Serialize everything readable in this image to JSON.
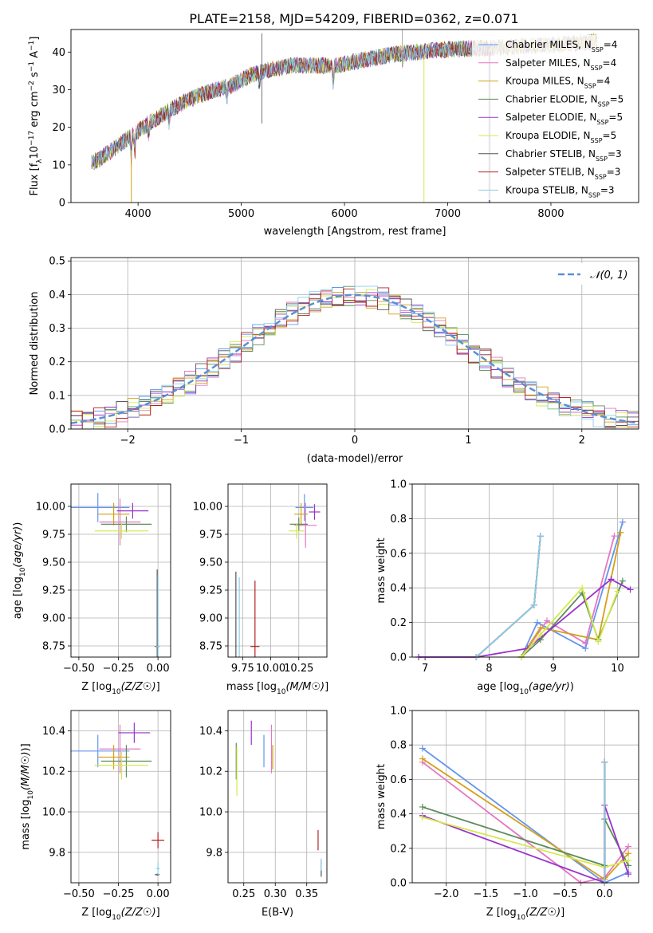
{
  "title": "PLATE=2158, MJD=54209, FIBERID=0362, z=0.071",
  "models": [
    {
      "name": "Chabrier MILES, N",
      "sub": "SSP",
      "tail": "=4",
      "color": "#6495ed"
    },
    {
      "name": "Salpeter MILES, N",
      "sub": "SSP",
      "tail": "=4",
      "color": "#e377c2"
    },
    {
      "name": "Kroupa MILES, N",
      "sub": "SSP",
      "tail": "=4",
      "color": "#d4a017"
    },
    {
      "name": "Chabrier ELODIE, N",
      "sub": "SSP",
      "tail": "=5",
      "color": "#5b8c5a"
    },
    {
      "name": "Salpeter ELODIE, N",
      "sub": "SSP",
      "tail": "=5",
      "color": "#9932cc"
    },
    {
      "name": "Kroupa ELODIE, N",
      "sub": "SSP",
      "tail": "=5",
      "color": "#d4e94a"
    },
    {
      "name": "Chabrier STELIB, N",
      "sub": "SSP",
      "tail": "=3",
      "color": "#555555"
    },
    {
      "name": "Salpeter STELIB, N",
      "sub": "SSP",
      "tail": "=3",
      "color": "#b22222"
    },
    {
      "name": "Kroupa STELIB, N",
      "sub": "SSP",
      "tail": "=3",
      "color": "#87ceeb"
    }
  ],
  "chart_data": [
    {
      "type": "line",
      "id": "spectrum",
      "xlabel": "wavelength [Angstrom, rest frame]",
      "ylabel": "Flux [f",
      "ylabel_full": "Flux [f_λ 10^-17 erg cm^-2 s^-1 A^-1]",
      "xlim": [
        3350,
        8850
      ],
      "ylim": [
        0,
        46
      ],
      "xticks": [
        4000,
        5000,
        6000,
        7000,
        8000
      ],
      "yticks": [
        0,
        10,
        20,
        30,
        40
      ],
      "x": [
        3550,
        3650,
        3800,
        3950,
        4100,
        4300,
        4500,
        4700,
        4900,
        5100,
        5300,
        5500,
        5700,
        5900,
        6100,
        6300,
        6500,
        6700,
        6900,
        7100,
        7300,
        7500,
        7700,
        7900,
        8100,
        8300,
        8500
      ],
      "y": [
        10.5,
        12,
        15,
        18,
        21,
        24.5,
        27.5,
        29.5,
        31,
        34,
        35.5,
        36.5,
        36.5,
        36.2,
        37.5,
        38.5,
        39.5,
        40,
        40.5,
        40.8,
        41,
        41.2,
        41.5,
        41.8,
        42,
        42.5,
        43
      ]
    },
    {
      "type": "bar",
      "id": "residuals",
      "xlabel": "(data-model)/error",
      "ylabel": "Normed distribution",
      "xlim": [
        -2.5,
        2.5
      ],
      "ylim": [
        0,
        0.51
      ],
      "xticks": [
        -2,
        -1,
        0,
        1,
        2
      ],
      "yticks": [
        0.0,
        0.1,
        0.2,
        0.3,
        0.4,
        0.5
      ],
      "ytick_labels": [
        "0.0",
        "0.1",
        "0.2",
        "0.3",
        "0.4",
        "0.5"
      ],
      "bin_width": 0.1,
      "legend": "𝒩(0, 1)",
      "reference_curve": "gaussian(0,1)"
    },
    {
      "type": "scatter",
      "id": "age-vs-z",
      "xlabel": "Z [log",
      "ylabel": "age  [log",
      "xlim": [
        -0.55,
        0.08
      ],
      "ylim": [
        8.65,
        10.2
      ],
      "xticks": [
        -0.5,
        -0.25,
        0.0
      ],
      "xtick_labels": [
        "−0.50",
        "−0.25",
        "0.00"
      ],
      "yticks": [
        8.75,
        9.0,
        9.25,
        9.5,
        9.75,
        10.0
      ],
      "ytick_labels": [
        "8.75",
        "9.00",
        "9.25",
        "9.50",
        "9.75",
        "10.00"
      ],
      "points": [
        {
          "m": 0,
          "x": -0.38,
          "y": 9.99,
          "xe": 0.2,
          "ye": 0.13
        },
        {
          "m": 1,
          "x": -0.24,
          "y": 9.86,
          "xe": 0.13,
          "ye": 0.21
        },
        {
          "m": 2,
          "x": -0.28,
          "y": 9.93,
          "xe": 0.1,
          "ye": 0.1
        },
        {
          "m": 3,
          "x": -0.2,
          "y": 9.84,
          "xe": 0.16,
          "ye": 0.07
        },
        {
          "m": 4,
          "x": -0.16,
          "y": 9.96,
          "xe": 0.1,
          "ye": 0.07
        },
        {
          "m": 5,
          "x": -0.23,
          "y": 9.78,
          "xe": 0.17,
          "ye": 0.07
        },
        {
          "m": 6,
          "x": -0.005,
          "y": 8.745,
          "xe": 0.015,
          "ye": 0.69
        },
        {
          "m": 7,
          "x": 0.0,
          "y": 8.745,
          "xe": 0.01,
          "ye": 0.01
        },
        {
          "m": 8,
          "x": 0.0,
          "y": 8.745,
          "xe": 0.012,
          "ye": 0.64
        }
      ]
    },
    {
      "type": "scatter",
      "id": "age-vs-mass",
      "xlabel": "mass [log",
      "ylabel": "",
      "xlim": [
        9.62,
        10.5
      ],
      "ylim": [
        8.65,
        10.2
      ],
      "xticks": [
        9.75,
        10.0,
        10.25
      ],
      "xtick_labels": [
        "9.75",
        "10.00",
        "10.25"
      ],
      "yticks": [
        8.75,
        9.0,
        9.25,
        9.5,
        9.75,
        10.0
      ],
      "ytick_labels": [
        "8.75",
        "9.00",
        "9.25",
        "9.50",
        "9.75",
        "10.00"
      ],
      "points": [
        {
          "m": 0,
          "x": 10.3,
          "y": 9.99,
          "xe": 0.08,
          "ye": 0.12
        },
        {
          "m": 1,
          "x": 10.31,
          "y": 9.83,
          "xe": 0.1,
          "ye": 0.2
        },
        {
          "m": 2,
          "x": 10.27,
          "y": 9.93,
          "xe": 0.06,
          "ye": 0.1
        },
        {
          "m": 3,
          "x": 10.25,
          "y": 9.84,
          "xe": 0.08,
          "ye": 0.06
        },
        {
          "m": 4,
          "x": 10.39,
          "y": 9.95,
          "xe": 0.05,
          "ye": 0.07
        },
        {
          "m": 5,
          "x": 10.23,
          "y": 9.78,
          "xe": 0.07,
          "ye": 0.07
        },
        {
          "m": 6,
          "x": 9.69,
          "y": 8.745,
          "xe": 0.005,
          "ye": 0.67
        },
        {
          "m": 7,
          "x": 9.86,
          "y": 8.745,
          "xe": 0.04,
          "ye": 0.59
        },
        {
          "m": 8,
          "x": 9.72,
          "y": 8.745,
          "xe": 0.005,
          "ye": 0.62
        }
      ]
    },
    {
      "type": "line",
      "id": "weight-vs-age",
      "xlabel": "age  [log",
      "ylabel": "mass weight",
      "xlim": [
        6.8,
        10.33
      ],
      "ylim": [
        0,
        1.0
      ],
      "xticks": [
        7,
        8,
        9,
        10
      ],
      "yticks": [
        0.0,
        0.2,
        0.4,
        0.6,
        0.8,
        1.0
      ],
      "ytick_labels": [
        "0.0",
        "0.2",
        "0.4",
        "0.6",
        "0.8",
        "1.0"
      ],
      "series": [
        {
          "m": 0,
          "x": [
            8.5,
            8.75,
            9.5,
            10.08
          ],
          "y": [
            0.0,
            0.2,
            0.05,
            0.78
          ]
        },
        {
          "m": 1,
          "x": [
            8.5,
            8.9,
            9.5,
            9.95
          ],
          "y": [
            0.0,
            0.21,
            0.08,
            0.7
          ]
        },
        {
          "m": 2,
          "x": [
            8.5,
            8.8,
            9.7,
            10.05
          ],
          "y": [
            0.0,
            0.17,
            0.1,
            0.72
          ]
        },
        {
          "m": 3,
          "x": [
            8.5,
            8.8,
            9.45,
            9.7,
            10.08
          ],
          "y": [
            0.0,
            0.1,
            0.37,
            0.1,
            0.44
          ]
        },
        {
          "m": 4,
          "x": [
            6.9,
            7.8,
            8.6,
            9.9,
            10.2
          ],
          "y": [
            0.0,
            0.0,
            0.05,
            0.45,
            0.39
          ]
        },
        {
          "m": 5,
          "x": [
            8.5,
            8.8,
            9.45,
            9.7,
            10.0
          ],
          "y": [
            0.0,
            0.13,
            0.4,
            0.09,
            0.38
          ]
        },
        {
          "m": 6,
          "x": [
            7.8,
            8.7,
            8.8
          ],
          "y": [
            0.0,
            0.3,
            0.7
          ]
        },
        {
          "m": 7,
          "x": [
            7.8,
            8.7,
            8.8
          ],
          "y": [
            0.0,
            0.3,
            0.7
          ]
        },
        {
          "m": 8,
          "x": [
            7.8,
            8.7,
            8.8
          ],
          "y": [
            0.0,
            0.3,
            0.7
          ]
        }
      ]
    },
    {
      "type": "scatter",
      "id": "mass-vs-z",
      "xlabel": "Z [log",
      "ylabel": "mass [log",
      "xlim": [
        -0.55,
        0.08
      ],
      "ylim": [
        9.65,
        10.5
      ],
      "xticks": [
        -0.5,
        -0.25,
        0.0
      ],
      "xtick_labels": [
        "−0.50",
        "−0.25",
        "0.00"
      ],
      "yticks": [
        9.8,
        10.0,
        10.2,
        10.4
      ],
      "ytick_labels": [
        "9.8",
        "10.0",
        "10.2",
        "10.4"
      ],
      "points": [
        {
          "m": 0,
          "x": -0.38,
          "y": 10.3,
          "xe": 0.2,
          "ye": 0.08
        },
        {
          "m": 1,
          "x": -0.24,
          "y": 10.31,
          "xe": 0.13,
          "ye": 0.12
        },
        {
          "m": 2,
          "x": -0.28,
          "y": 10.27,
          "xe": 0.1,
          "ye": 0.06
        },
        {
          "m": 3,
          "x": -0.2,
          "y": 10.25,
          "xe": 0.16,
          "ye": 0.08
        },
        {
          "m": 4,
          "x": -0.15,
          "y": 10.39,
          "xe": 0.1,
          "ye": 0.05
        },
        {
          "m": 5,
          "x": -0.23,
          "y": 10.23,
          "xe": 0.17,
          "ye": 0.07
        },
        {
          "m": 6,
          "x": -0.005,
          "y": 9.69,
          "xe": 0.015,
          "ye": 0.005
        },
        {
          "m": 7,
          "x": 0.0,
          "y": 9.86,
          "xe": 0.04,
          "ye": 0.04
        },
        {
          "m": 8,
          "x": 0.0,
          "y": 9.72,
          "xe": 0.012,
          "ye": 0.03
        }
      ]
    },
    {
      "type": "scatter",
      "id": "mass-vs-ebv",
      "xlabel": "E(B-V)",
      "ylabel": "",
      "xlim": [
        0.225,
        0.382
      ],
      "ylim": [
        9.65,
        10.5
      ],
      "xticks": [
        0.25,
        0.3,
        0.35
      ],
      "xtick_labels": [
        "0.25",
        "0.30",
        "0.35"
      ],
      "yticks": [
        9.8,
        10.0,
        10.2,
        10.4
      ],
      "ytick_labels": [
        "9.8",
        "10.0",
        "10.2",
        "10.4"
      ],
      "points": [
        {
          "m": 0,
          "x": 0.282,
          "y": 10.3,
          "xe": 0,
          "ye": 0.08
        },
        {
          "m": 1,
          "x": 0.294,
          "y": 10.31,
          "xe": 0,
          "ye": 0.12
        },
        {
          "m": 2,
          "x": 0.296,
          "y": 10.27,
          "xe": 0,
          "ye": 0.06
        },
        {
          "m": 3,
          "x": 0.238,
          "y": 10.25,
          "xe": 0,
          "ye": 0.09
        },
        {
          "m": 4,
          "x": 0.262,
          "y": 10.39,
          "xe": 0,
          "ye": 0.06
        },
        {
          "m": 5,
          "x": 0.239,
          "y": 10.2,
          "xe": 0,
          "ye": 0.12
        },
        {
          "m": 6,
          "x": 0.373,
          "y": 9.72,
          "xe": 0,
          "ye": 0.04
        },
        {
          "m": 7,
          "x": 0.368,
          "y": 9.86,
          "xe": 0,
          "ye": 0.05
        },
        {
          "m": 8,
          "x": 0.373,
          "y": 9.74,
          "xe": 0,
          "ye": 0.03
        }
      ]
    },
    {
      "type": "line",
      "id": "weight-vs-z",
      "xlabel": "Z [log",
      "ylabel": "mass weight",
      "xlim": [
        -2.43,
        0.43
      ],
      "ylim": [
        0,
        1.0
      ],
      "xticks": [
        -2.0,
        -1.5,
        -1.0,
        -0.5,
        0.0
      ],
      "xtick_labels": [
        "−2.0",
        "−1.5",
        "−1.0",
        "−0.5",
        "0.0"
      ],
      "yticks": [
        0.0,
        0.2,
        0.4,
        0.6,
        0.8,
        1.0
      ],
      "ytick_labels": [
        "0.0",
        "0.2",
        "0.4",
        "0.6",
        "0.8",
        "1.0"
      ],
      "series": [
        {
          "m": 0,
          "x": [
            -2.3,
            0.0,
            0.3
          ],
          "y": [
            0.78,
            0.0,
            0.06
          ]
        },
        {
          "m": 1,
          "x": [
            -2.3,
            -0.3,
            0.0,
            0.3
          ],
          "y": [
            0.7,
            0.0,
            0.03,
            0.21
          ]
        },
        {
          "m": 2,
          "x": [
            -2.3,
            0.0,
            0.3
          ],
          "y": [
            0.72,
            0.02,
            0.17
          ]
        },
        {
          "m": 3,
          "x": [
            -2.3,
            0.0,
            0.0,
            0.3
          ],
          "y": [
            0.44,
            0.1,
            0.37,
            0.1
          ]
        },
        {
          "m": 4,
          "x": [
            -2.3,
            0.0,
            0.0,
            0.3
          ],
          "y": [
            0.39,
            0.0,
            0.45,
            0.05
          ]
        },
        {
          "m": 5,
          "x": [
            -2.3,
            0.0,
            0.3
          ],
          "y": [
            0.38,
            0.09,
            0.13
          ]
        },
        {
          "m": 6,
          "x": [
            0.0,
            0.0
          ],
          "y": [
            0.0,
            0.7
          ]
        },
        {
          "m": 7,
          "x": [
            0.0,
            0.0
          ],
          "y": [
            0.0,
            0.7
          ]
        },
        {
          "m": 8,
          "x": [
            0.0,
            0.0
          ],
          "y": [
            0.0,
            0.7
          ]
        }
      ]
    }
  ]
}
